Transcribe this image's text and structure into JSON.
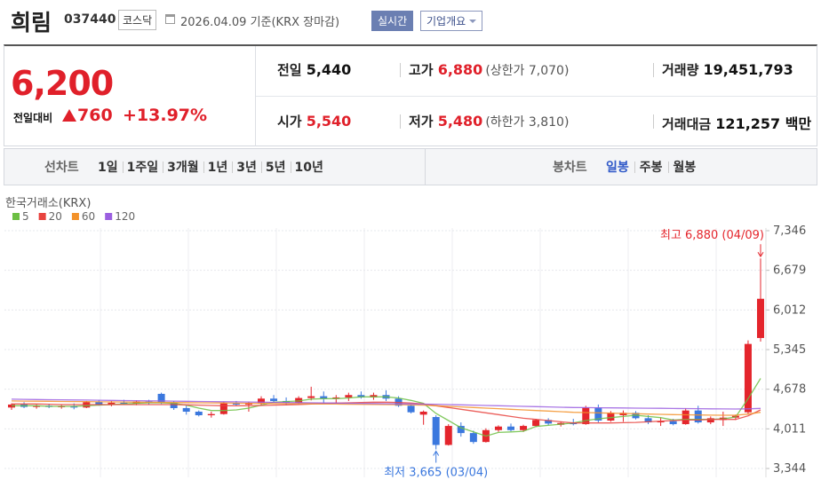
{
  "header": {
    "name": "희림",
    "code": "037440",
    "market": "코스닥",
    "date": "2026.04.09 기준(KRX 장마감)",
    "realtime": "실시간",
    "overview": "기업개요"
  },
  "quote": {
    "price": "6,200",
    "change_label": "전일대비",
    "change": "760",
    "change_rate": "+13.97%",
    "rows": [
      [
        {
          "label": "전일",
          "value": "5,440",
          "color": "#111111"
        },
        {
          "label": "고가",
          "value": "6,880",
          "note": "(상한가 7,070)",
          "color": "#e0202a"
        },
        {
          "label": "거래량",
          "value": "19,451,793",
          "color": "#111111"
        }
      ],
      [
        {
          "label": "시가",
          "value": "5,540",
          "color": "#e0202a"
        },
        {
          "label": "저가",
          "value": "5,480",
          "note": "(하한가 3,810)",
          "color": "#e0202a"
        },
        {
          "label": "거래대금",
          "value": "121,257 백만",
          "color": "#111111"
        }
      ]
    ]
  },
  "tabs": {
    "line_label": "선차트",
    "line": [
      "1일",
      "1주일",
      "3개월",
      "1년",
      "3년",
      "5년",
      "10년"
    ],
    "candle_label": "봉차트",
    "candle": [
      "일봉",
      "주봉",
      "월봉"
    ],
    "selected_candle": 0
  },
  "chart_data": {
    "type": "candlestick",
    "source": "한국거래소(KRX)",
    "up_color": "#e4252c",
    "down_color": "#3b78de",
    "open": [
      4370,
      4420,
      4380,
      4400,
      4380,
      4390,
      4370,
      4460,
      4420,
      4450,
      4440,
      4470,
      4600,
      4450,
      4360,
      4300,
      4240,
      4260,
      4440,
      4420,
      4440,
      4520,
      4480,
      4450,
      4530,
      4560,
      4520,
      4540,
      4580,
      4540,
      4580,
      4520,
      4400,
      4250,
      4210,
      3740,
      4060,
      3940,
      3790,
      3990,
      4050,
      3990,
      4060,
      4160,
      4080,
      4110,
      4090,
      4370,
      4150,
      4240,
      4280,
      4190,
      4120,
      4140,
      4090,
      4320,
      4120,
      4160,
      4200,
      4290,
      5540
    ],
    "high": [
      4440,
      4460,
      4420,
      4430,
      4420,
      4440,
      4480,
      4500,
      4480,
      4500,
      4490,
      4500,
      4620,
      4480,
      4400,
      4320,
      4300,
      4470,
      4480,
      4470,
      4560,
      4580,
      4540,
      4560,
      4720,
      4640,
      4580,
      4620,
      4640,
      4620,
      4660,
      4560,
      4420,
      4320,
      4240,
      4090,
      4120,
      3980,
      4020,
      4070,
      4100,
      4080,
      4180,
      4190,
      4130,
      4180,
      4400,
      4420,
      4310,
      4320,
      4310,
      4240,
      4200,
      4180,
      4360,
      4400,
      4220,
      4300,
      4250,
      5500,
      6880
    ],
    "low": [
      4330,
      4360,
      4350,
      4360,
      4350,
      4340,
      4360,
      4400,
      4390,
      4420,
      4410,
      4420,
      4430,
      4330,
      4250,
      4220,
      4200,
      4250,
      4400,
      4300,
      4400,
      4460,
      4410,
      4430,
      4490,
      4450,
      4440,
      4480,
      4520,
      4500,
      4480,
      4380,
      4270,
      4080,
      3665,
      3730,
      3880,
      3760,
      3780,
      3960,
      3970,
      3960,
      4040,
      4070,
      4050,
      4070,
      4080,
      4120,
      4130,
      4130,
      4170,
      4090,
      4060,
      4070,
      4080,
      4100,
      4090,
      4060,
      4160,
      4250,
      5480
    ],
    "close": [
      4420,
      4380,
      4400,
      4380,
      4390,
      4370,
      4460,
      4420,
      4450,
      4440,
      4470,
      4450,
      4450,
      4360,
      4300,
      4240,
      4260,
      4440,
      4420,
      4440,
      4520,
      4480,
      4450,
      4530,
      4560,
      4520,
      4540,
      4580,
      4540,
      4580,
      4520,
      4400,
      4290,
      4300,
      3740,
      4060,
      3940,
      3790,
      3990,
      4050,
      3990,
      4060,
      4160,
      4100,
      4110,
      4090,
      4370,
      4150,
      4280,
      4280,
      4190,
      4120,
      4140,
      4090,
      4320,
      4120,
      4190,
      4200,
      4230,
      5440,
      6200
    ],
    "series": [
      {
        "name": "5",
        "color": "#6cbf43",
        "values": [
          4400,
          4400,
          4400,
          4390,
          4390,
          4390,
          4400,
          4410,
          4420,
          4430,
          4440,
          4450,
          4450,
          4440,
          4410,
          4360,
          4320,
          4320,
          4330,
          4360,
          4410,
          4460,
          4470,
          4480,
          4510,
          4520,
          4520,
          4530,
          4550,
          4550,
          4550,
          4530,
          4490,
          4440,
          4270,
          4150,
          4030,
          3960,
          3890,
          3950,
          3960,
          3970,
          4050,
          4070,
          4090,
          4110,
          4150,
          4180,
          4200,
          4220,
          4240,
          4220,
          4200,
          4160,
          4170,
          4170,
          4170,
          4180,
          4210,
          4520,
          4860
        ]
      },
      {
        "name": "20",
        "color": "#e8433e",
        "values": [
          4430,
          4430,
          4430,
          4425,
          4420,
          4420,
          4420,
          4420,
          4420,
          4420,
          4420,
          4420,
          4420,
          4420,
          4415,
          4410,
          4405,
          4400,
          4400,
          4400,
          4405,
          4410,
          4415,
          4420,
          4430,
          4440,
          4445,
          4450,
          4455,
          4460,
          4460,
          4455,
          4445,
          4430,
          4400,
          4370,
          4340,
          4310,
          4280,
          4250,
          4220,
          4190,
          4170,
          4150,
          4130,
          4110,
          4110,
          4110,
          4110,
          4115,
          4120,
          4130,
          4140,
          4150,
          4160,
          4160,
          4170,
          4170,
          4170,
          4230,
          4330
        ]
      },
      {
        "name": "60",
        "color": "#f3922a",
        "values": [
          4480,
          4478,
          4476,
          4474,
          4472,
          4470,
          4468,
          4466,
          4464,
          4462,
          4460,
          4458,
          4456,
          4454,
          4452,
          4450,
          4448,
          4446,
          4444,
          4442,
          4440,
          4438,
          4436,
          4434,
          4432,
          4430,
          4428,
          4426,
          4424,
          4422,
          4420,
          4418,
          4414,
          4410,
          4400,
          4390,
          4380,
          4370,
          4360,
          4350,
          4340,
          4330,
          4320,
          4310,
          4300,
          4290,
          4285,
          4280,
          4275,
          4270,
          4265,
          4260,
          4255,
          4250,
          4248,
          4245,
          4242,
          4240,
          4240,
          4260,
          4290
        ]
      },
      {
        "name": "120",
        "color": "#9b5fe0",
        "values": [
          4510,
          4508,
          4505,
          4502,
          4500,
          4497,
          4495,
          4492,
          4490,
          4487,
          4485,
          4482,
          4480,
          4477,
          4475,
          4472,
          4470,
          4467,
          4465,
          4462,
          4460,
          4457,
          4455,
          4452,
          4450,
          4447,
          4445,
          4442,
          4440,
          4437,
          4435,
          4432,
          4430,
          4427,
          4425,
          4420,
          4415,
          4410,
          4405,
          4400,
          4395,
          4390,
          4385,
          4380,
          4375,
          4370,
          4368,
          4366,
          4364,
          4362,
          4360,
          4358,
          4356,
          4354,
          4352,
          4350,
          4348,
          4346,
          4344,
          4348,
          4355
        ]
      }
    ],
    "high_label": "최고 6,880 (04/09)",
    "low_label": "최저 3,665 (03/04)",
    "ylim": [
      3195,
      7570
    ],
    "yticks": [
      {
        "value": 3344,
        "label": "3,344"
      },
      {
        "value": 4011,
        "label": "4,011"
      },
      {
        "value": 4678,
        "label": "4,678"
      },
      {
        "value": 5345,
        "label": "5,345"
      },
      {
        "value": 6012,
        "label": "6,012"
      },
      {
        "value": 6679,
        "label": "6,679"
      },
      {
        "value": 7346,
        "label": "7,346"
      }
    ],
    "grid": true
  }
}
